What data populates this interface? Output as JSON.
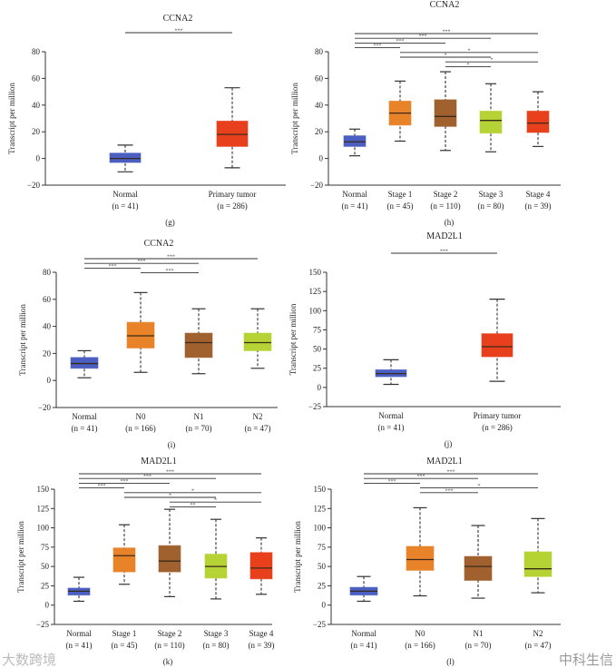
{
  "colors": {
    "normal": "#4a5fc1",
    "orange": "#e8832a",
    "brown": "#a0612f",
    "lime": "#b5d334",
    "red": "#e8401c"
  },
  "ylabel": "Transcript per million",
  "watermarks": [
    "大数跨境",
    "中科生信"
  ],
  "chart_data": [
    {
      "type": "box",
      "panel": "(g)",
      "title": "CCNA2",
      "ylabel": "Transcript per million",
      "ylim": [
        -20,
        80
      ],
      "yticks": [
        -20,
        0,
        20,
        40,
        60,
        80
      ],
      "categories": [
        "Normal",
        "Primary tumor"
      ],
      "n": [
        "(n = 41)",
        "(n = 286)"
      ],
      "boxes": [
        {
          "min": -10,
          "q1": -3,
          "median": 0,
          "q3": 4,
          "max": 10,
          "color": "normal"
        },
        {
          "min": -7,
          "q1": 9,
          "median": 18,
          "q3": 28,
          "max": 53,
          "color": "red"
        }
      ],
      "significance": [
        {
          "from": 0,
          "to": 1,
          "label": "***"
        }
      ]
    },
    {
      "type": "box",
      "panel": "(h)",
      "title": "CCNA2",
      "ylabel": "Transcript per million",
      "ylim": [
        -20,
        80
      ],
      "yticks": [
        -20,
        0,
        20,
        40,
        60,
        80
      ],
      "categories": [
        "Normal",
        "Stage 1",
        "Stage 2",
        "Stage 3",
        "Stage 4"
      ],
      "n": [
        "(n = 41)",
        "(n = 45)",
        "(n = 110)",
        "(n = 80)",
        "(n = 39)"
      ],
      "boxes": [
        {
          "min": 2,
          "q1": 9,
          "median": 12.5,
          "q3": 17,
          "max": 22,
          "color": "normal"
        },
        {
          "min": 13,
          "q1": 25,
          "median": 34,
          "q3": 43,
          "max": 58,
          "color": "orange"
        },
        {
          "min": 6,
          "q1": 24,
          "median": 31.5,
          "q3": 44,
          "max": 65,
          "color": "brown"
        },
        {
          "min": 5,
          "q1": 19,
          "median": 28.5,
          "q3": 35.5,
          "max": 56,
          "color": "lime"
        },
        {
          "min": 9,
          "q1": 19.5,
          "median": 26.5,
          "q3": 35.5,
          "max": 50,
          "color": "red"
        }
      ],
      "significance": [
        {
          "from": 0,
          "to": 4,
          "label": "***"
        },
        {
          "from": 0,
          "to": 3,
          "label": "***"
        },
        {
          "from": 0,
          "to": 2,
          "label": "***"
        },
        {
          "from": 0,
          "to": 1,
          "label": "***"
        },
        {
          "from": 1,
          "to": 4,
          "label": "*"
        },
        {
          "from": 1,
          "to": 3,
          "label": "*"
        },
        {
          "from": 2,
          "to": 4,
          "label": "*"
        },
        {
          "from": 2,
          "to": 3,
          "label": "*"
        }
      ]
    },
    {
      "type": "box",
      "panel": "(i)",
      "title": "CCNA2",
      "ylabel": "Transcript per million",
      "ylim": [
        -20,
        80
      ],
      "yticks": [
        -20,
        0,
        20,
        40,
        60,
        80
      ],
      "categories": [
        "Normal",
        "N0",
        "N1",
        "N2"
      ],
      "n": [
        "(n = 41)",
        "(n = 166)",
        "(n = 70)",
        "(n = 47)"
      ],
      "boxes": [
        {
          "min": 2,
          "q1": 9,
          "median": 12.5,
          "q3": 17,
          "max": 22,
          "color": "normal"
        },
        {
          "min": 6,
          "q1": 24,
          "median": 33,
          "q3": 43,
          "max": 65,
          "color": "orange"
        },
        {
          "min": 5,
          "q1": 17,
          "median": 28,
          "q3": 35,
          "max": 53,
          "color": "brown"
        },
        {
          "min": 9,
          "q1": 22,
          "median": 28,
          "q3": 35,
          "max": 53,
          "color": "lime"
        }
      ],
      "significance": [
        {
          "from": 0,
          "to": 3,
          "label": "***"
        },
        {
          "from": 0,
          "to": 2,
          "label": "***"
        },
        {
          "from": 0,
          "to": 1,
          "label": "***"
        },
        {
          "from": 1,
          "to": 2,
          "label": "***"
        }
      ]
    },
    {
      "type": "box",
      "panel": "(j)",
      "title": "MAD2L1",
      "ylabel": "Transcript per million",
      "ylim": [
        -25,
        150
      ],
      "yticks": [
        -25,
        0,
        25,
        50,
        75,
        100,
        125,
        150
      ],
      "categories": [
        "Normal",
        "Primary tumor"
      ],
      "n": [
        "(n = 41)",
        "(n = 286)"
      ],
      "boxes": [
        {
          "min": 4,
          "q1": 14,
          "median": 18,
          "q3": 23,
          "max": 36,
          "color": "normal"
        },
        {
          "min": 8,
          "q1": 40,
          "median": 53,
          "q3": 70,
          "max": 115,
          "color": "red"
        }
      ],
      "significance": [
        {
          "from": 0,
          "to": 1,
          "label": "***"
        }
      ]
    },
    {
      "type": "box",
      "panel": "(k)",
      "title": "MAD2L1",
      "ylabel": "Transcript per million",
      "ylim": [
        -25,
        150
      ],
      "yticks": [
        -25,
        0,
        25,
        50,
        75,
        100,
        125,
        150
      ],
      "categories": [
        "Normal",
        "Stage 1",
        "Stage 2",
        "Stage 3",
        "Stage 4"
      ],
      "n": [
        "(n = 41)",
        "(n = 45)",
        "(n = 110)",
        "(n = 80)",
        "(n = 39)"
      ],
      "boxes": [
        {
          "min": 5,
          "q1": 13,
          "median": 18,
          "q3": 22,
          "max": 36,
          "color": "normal"
        },
        {
          "min": 27,
          "q1": 43,
          "median": 64,
          "q3": 74,
          "max": 104,
          "color": "orange"
        },
        {
          "min": 11,
          "q1": 43,
          "median": 57,
          "q3": 77,
          "max": 124,
          "color": "brown"
        },
        {
          "min": 8,
          "q1": 35,
          "median": 50,
          "q3": 66,
          "max": 111,
          "color": "lime"
        },
        {
          "min": 14,
          "q1": 34,
          "median": 48,
          "q3": 68,
          "max": 87,
          "color": "red"
        }
      ],
      "significance": [
        {
          "from": 0,
          "to": 4,
          "label": "***"
        },
        {
          "from": 0,
          "to": 3,
          "label": "***"
        },
        {
          "from": 0,
          "to": 2,
          "label": "***"
        },
        {
          "from": 0,
          "to": 1,
          "label": "***"
        },
        {
          "from": 1,
          "to": 4,
          "label": "*"
        },
        {
          "from": 1,
          "to": 3,
          "label": "*"
        },
        {
          "from": 2,
          "to": 4,
          "label": "*"
        },
        {
          "from": 2,
          "to": 3,
          "label": "**"
        }
      ]
    },
    {
      "type": "box",
      "panel": "(l)",
      "title": "MAD2L1",
      "ylabel": "Transcript per million",
      "ylim": [
        -25,
        150
      ],
      "yticks": [
        -25,
        0,
        25,
        50,
        75,
        100,
        125,
        150
      ],
      "categories": [
        "Normal",
        "N0",
        "N1",
        "N2"
      ],
      "n": [
        "(n = 41)",
        "(n = 166)",
        "(n = 70)",
        "(n = 47)"
      ],
      "boxes": [
        {
          "min": 5,
          "q1": 13,
          "median": 18,
          "q3": 23,
          "max": 37,
          "color": "normal"
        },
        {
          "min": 12,
          "q1": 45,
          "median": 59,
          "q3": 76,
          "max": 126,
          "color": "orange"
        },
        {
          "min": 9,
          "q1": 32,
          "median": 50,
          "q3": 63,
          "max": 103,
          "color": "brown"
        },
        {
          "min": 16,
          "q1": 37,
          "median": 47,
          "q3": 69,
          "max": 112,
          "color": "lime"
        }
      ],
      "significance": [
        {
          "from": 0,
          "to": 3,
          "label": "***"
        },
        {
          "from": 0,
          "to": 2,
          "label": "***"
        },
        {
          "from": 0,
          "to": 1,
          "label": "***"
        },
        {
          "from": 1,
          "to": 3,
          "label": "*"
        },
        {
          "from": 1,
          "to": 2,
          "label": "***"
        }
      ]
    }
  ]
}
